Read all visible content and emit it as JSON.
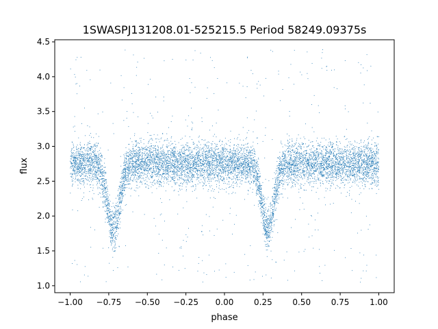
{
  "chart_data": {
    "type": "scatter",
    "title": "1SWASPJ131208.01-525215.5 Period 58249.09375s",
    "xlabel": "phase",
    "ylabel": "flux",
    "xlim": [
      -1.1,
      1.1
    ],
    "ylim": [
      0.9,
      4.53
    ],
    "x_ticks": [
      -1.0,
      -0.75,
      -0.5,
      -0.25,
      0.0,
      0.25,
      0.5,
      0.75,
      1.0
    ],
    "x_tick_labels": [
      "−1.00",
      "−0.75",
      "−0.50",
      "−0.25",
      "0.00",
      "0.25",
      "0.50",
      "0.75",
      "1.00"
    ],
    "y_ticks": [
      1.0,
      1.5,
      2.0,
      2.5,
      3.0,
      3.5,
      4.0,
      4.5
    ],
    "y_tick_labels": [
      "1.0",
      "1.5",
      "2.0",
      "2.5",
      "3.0",
      "3.5",
      "4.0",
      "4.5"
    ],
    "grid": false,
    "legend": "none",
    "marker_color": "#1f77b4",
    "series": [
      {
        "phase_range": [
          -1.0,
          1.0
        ],
        "baseline_flux": 2.75,
        "eclipses": [
          {
            "phase_center": -0.72,
            "min_flux": 1.8
          },
          {
            "phase_center": 0.28,
            "min_flux": 1.8
          }
        ]
      }
    ]
  }
}
